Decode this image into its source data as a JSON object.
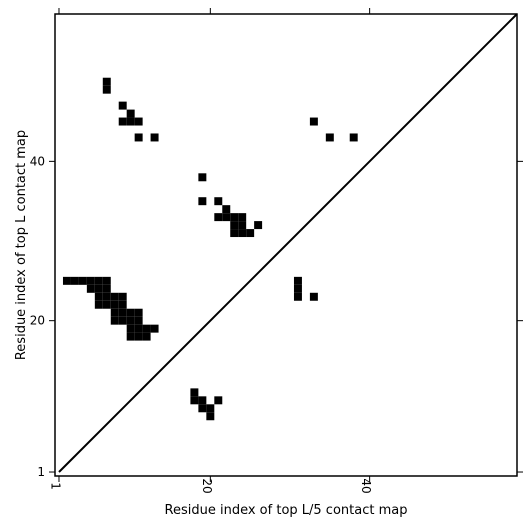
{
  "chart_data": {
    "type": "heatmap",
    "title": "",
    "xlabel": "Residue index of top L/5 contact map",
    "ylabel": "Residue index of top L contact map",
    "xlim": [
      0.5,
      58.5
    ],
    "ylim": [
      0.5,
      58.5
    ],
    "x_ticks": [
      1,
      20,
      40
    ],
    "y_ticks": [
      1,
      20,
      40
    ],
    "diagonal": true,
    "cell_color": "#000000",
    "grid": false,
    "series": [
      {
        "region": "upper-left",
        "cells": [
          [
            7,
            49
          ],
          [
            7,
            50
          ],
          [
            9,
            47
          ],
          [
            10,
            46
          ],
          [
            9,
            45
          ],
          [
            10,
            45
          ],
          [
            11,
            45
          ],
          [
            11,
            43
          ],
          [
            13,
            43
          ],
          [
            19,
            38
          ],
          [
            19,
            35
          ],
          [
            21,
            35
          ],
          [
            22,
            34
          ],
          [
            21,
            33
          ],
          [
            22,
            33
          ],
          [
            23,
            33
          ],
          [
            24,
            33
          ],
          [
            23,
            32
          ],
          [
            24,
            32
          ],
          [
            26,
            32
          ],
          [
            23,
            31
          ],
          [
            24,
            31
          ],
          [
            25,
            31
          ],
          [
            31,
            23
          ],
          [
            31,
            24
          ],
          [
            31,
            25
          ],
          [
            33,
            23
          ],
          [
            33,
            45
          ],
          [
            35,
            43
          ],
          [
            38,
            43
          ],
          [
            2,
            25
          ],
          [
            3,
            25
          ],
          [
            4,
            25
          ],
          [
            5,
            25
          ],
          [
            6,
            25
          ],
          [
            7,
            25
          ],
          [
            5,
            24
          ],
          [
            6,
            24
          ],
          [
            7,
            24
          ],
          [
            6,
            23
          ],
          [
            7,
            23
          ],
          [
            8,
            23
          ],
          [
            9,
            23
          ],
          [
            6,
            22
          ],
          [
            7,
            22
          ],
          [
            8,
            22
          ],
          [
            9,
            22
          ],
          [
            8,
            21
          ],
          [
            9,
            21
          ],
          [
            10,
            21
          ],
          [
            11,
            21
          ],
          [
            8,
            20
          ],
          [
            9,
            20
          ],
          [
            10,
            20
          ],
          [
            11,
            20
          ],
          [
            10,
            19
          ],
          [
            11,
            19
          ],
          [
            12,
            19
          ],
          [
            13,
            19
          ],
          [
            10,
            18
          ],
          [
            11,
            18
          ],
          [
            12,
            18
          ]
        ]
      },
      {
        "region": "lower-right",
        "cells": [
          [
            18,
            11
          ],
          [
            18,
            10
          ],
          [
            19,
            10
          ],
          [
            21,
            10
          ],
          [
            19,
            9
          ],
          [
            20,
            9
          ],
          [
            20,
            8
          ]
        ]
      }
    ]
  }
}
